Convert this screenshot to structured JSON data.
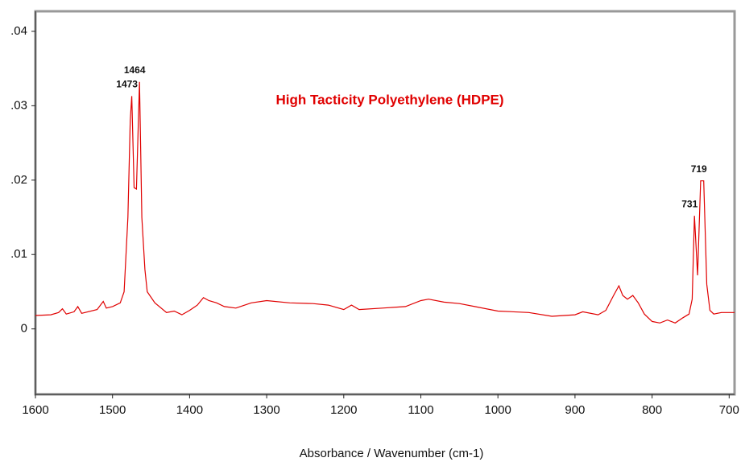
{
  "chart_data": {
    "type": "line",
    "title": "High Tacticity Polyethylene (HDPE)",
    "xlabel": "Absorbance / Wavenumber (cm-1)",
    "x": [
      1600,
      1580,
      1570,
      1565,
      1560,
      1550,
      1545,
      1540,
      1520,
      1512,
      1508,
      1500,
      1490,
      1485,
      1480,
      1477,
      1475,
      1472,
      1469,
      1465,
      1462,
      1458,
      1455,
      1445,
      1430,
      1420,
      1410,
      1400,
      1390,
      1382,
      1375,
      1365,
      1355,
      1340,
      1320,
      1300,
      1270,
      1240,
      1220,
      1200,
      1190,
      1180,
      1150,
      1120,
      1100,
      1090,
      1070,
      1050,
      1030,
      1000,
      960,
      930,
      900,
      890,
      870,
      860,
      850,
      843,
      838,
      832,
      825,
      818,
      810,
      800,
      790,
      780,
      770,
      760,
      752,
      748,
      745,
      741,
      737,
      733,
      729,
      725,
      720,
      710,
      700,
      693
    ],
    "series": [
      {
        "name": "HDPE",
        "color": "#e00000",
        "values": [
          0.0018,
          0.0019,
          0.0022,
          0.0027,
          0.002,
          0.0023,
          0.003,
          0.0021,
          0.0026,
          0.0037,
          0.0028,
          0.003,
          0.0035,
          0.005,
          0.015,
          0.028,
          0.0313,
          0.019,
          0.0188,
          0.0332,
          0.015,
          0.008,
          0.005,
          0.0035,
          0.0022,
          0.0024,
          0.0019,
          0.0025,
          0.0032,
          0.0042,
          0.0038,
          0.0035,
          0.003,
          0.0028,
          0.0035,
          0.0038,
          0.0035,
          0.0034,
          0.0032,
          0.0026,
          0.0032,
          0.0026,
          0.0028,
          0.003,
          0.0038,
          0.004,
          0.0036,
          0.0034,
          0.003,
          0.0024,
          0.0022,
          0.0017,
          0.0019,
          0.0023,
          0.0019,
          0.0025,
          0.0045,
          0.0058,
          0.0045,
          0.004,
          0.0045,
          0.0035,
          0.002,
          0.001,
          0.0008,
          0.0012,
          0.0008,
          0.0015,
          0.002,
          0.004,
          0.0152,
          0.0072,
          0.0199,
          0.0199,
          0.006,
          0.0025,
          0.002,
          0.0022,
          0.0022,
          0.0022
        ]
      }
    ],
    "annotations": [
      {
        "text": "1473",
        "x": 1475,
        "y": 0.0313
      },
      {
        "text": "1464",
        "x": 1465,
        "y": 0.0332
      },
      {
        "text": "731",
        "x": 745,
        "y": 0.0152
      },
      {
        "text": "719",
        "x": 733,
        "y": 0.0199
      }
    ],
    "xlim": [
      1600,
      693
    ],
    "ylim": [
      -0.0088,
      0.0427
    ],
    "xticks": [
      1600,
      1500,
      1400,
      1300,
      1200,
      1100,
      1000,
      900,
      800,
      700
    ],
    "yticks": [
      {
        "value": 0.04,
        "label": ".04"
      },
      {
        "value": 0.03,
        "label": ".03"
      },
      {
        "value": 0.02,
        "label": ".02"
      },
      {
        "value": 0.01,
        "label": ".01"
      },
      0
    ]
  }
}
